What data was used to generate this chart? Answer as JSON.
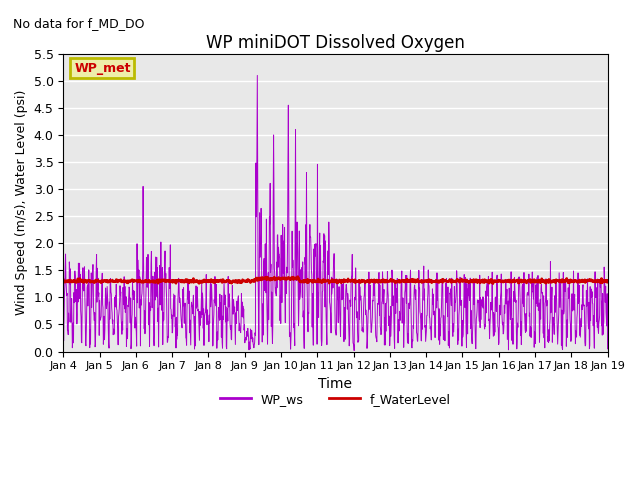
{
  "title": "WP miniDOT Dissolved Oxygen",
  "subtitle": "No data for f_MD_DO",
  "ylabel": "Wind Speed (m/s), Water Level (psi)",
  "xlabel": "Time",
  "ylim": [
    0.0,
    5.5
  ],
  "yticks": [
    0.0,
    0.5,
    1.0,
    1.5,
    2.0,
    2.5,
    3.0,
    3.5,
    4.0,
    4.5,
    5.0,
    5.5
  ],
  "xtick_labels": [
    "Jan 4",
    "Jan 5",
    "Jan 6",
    "Jan 7",
    "Jan 8",
    "Jan 9",
    "Jan 10",
    "Jan 11",
    "Jan 12",
    "Jan 13",
    "Jan 14",
    "Jan 15",
    "Jan 16",
    "Jan 17",
    "Jan 18",
    "Jan 19"
  ],
  "wp_ws_color": "#aa00cc",
  "f_wl_color": "#cc0000",
  "f_wl_value": 1.3,
  "legend_box_edge_color": "#bbbb00",
  "legend_box_face_color": "#eeeeaa",
  "legend_box_text": "WP_met",
  "legend_box_text_color": "#cc0000",
  "bg_color": "#e8e8e8",
  "fig_bg_color": "#ffffff",
  "grid_color": "#ffffff",
  "legend_ws_label": "WP_ws",
  "legend_wl_label": "f_WaterLevel"
}
